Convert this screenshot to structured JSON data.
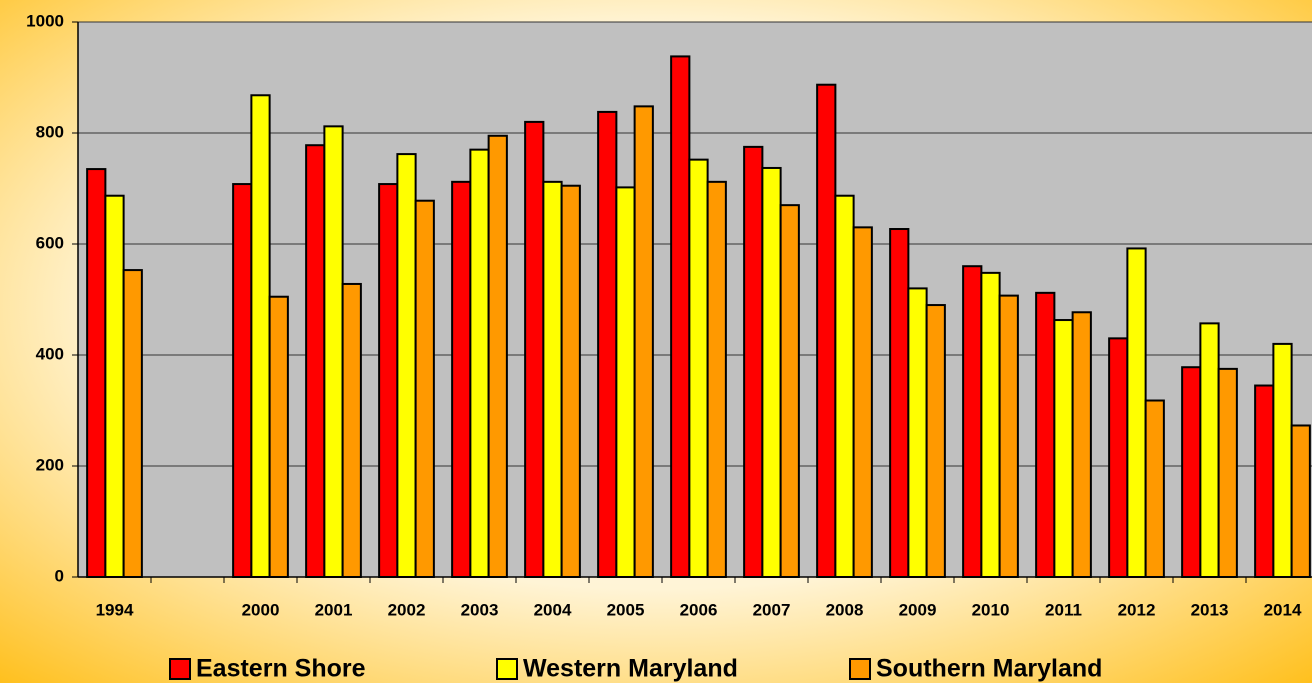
{
  "chart_data": {
    "type": "bar",
    "categories": [
      "1994",
      null,
      "2000",
      "2001",
      "2002",
      "2003",
      "2004",
      "2005",
      "2006",
      "2007",
      "2008",
      "2009",
      "2010",
      "2011",
      "2012",
      "2013",
      "2014"
    ],
    "series": [
      {
        "name": "Eastern Shore",
        "color": "#ff0000",
        "values": [
          735,
          null,
          708,
          778,
          708,
          712,
          820,
          838,
          938,
          775,
          887,
          627,
          560,
          512,
          430,
          378,
          345
        ]
      },
      {
        "name": "Western Maryland",
        "color": "#ffff00",
        "values": [
          687,
          null,
          868,
          812,
          762,
          770,
          712,
          702,
          752,
          737,
          687,
          520,
          548,
          463,
          592,
          457,
          420
        ]
      },
      {
        "name": "Southern Maryland",
        "color": "#ff9900",
        "values": [
          553,
          null,
          505,
          528,
          678,
          795,
          705,
          848,
          712,
          670,
          630,
          490,
          507,
          477,
          318,
          375,
          273
        ]
      }
    ],
    "ylim": [
      0,
      1000
    ],
    "yticks": [
      0,
      200,
      400,
      600,
      800,
      1000
    ],
    "grid": true,
    "legend": "bottom"
  }
}
